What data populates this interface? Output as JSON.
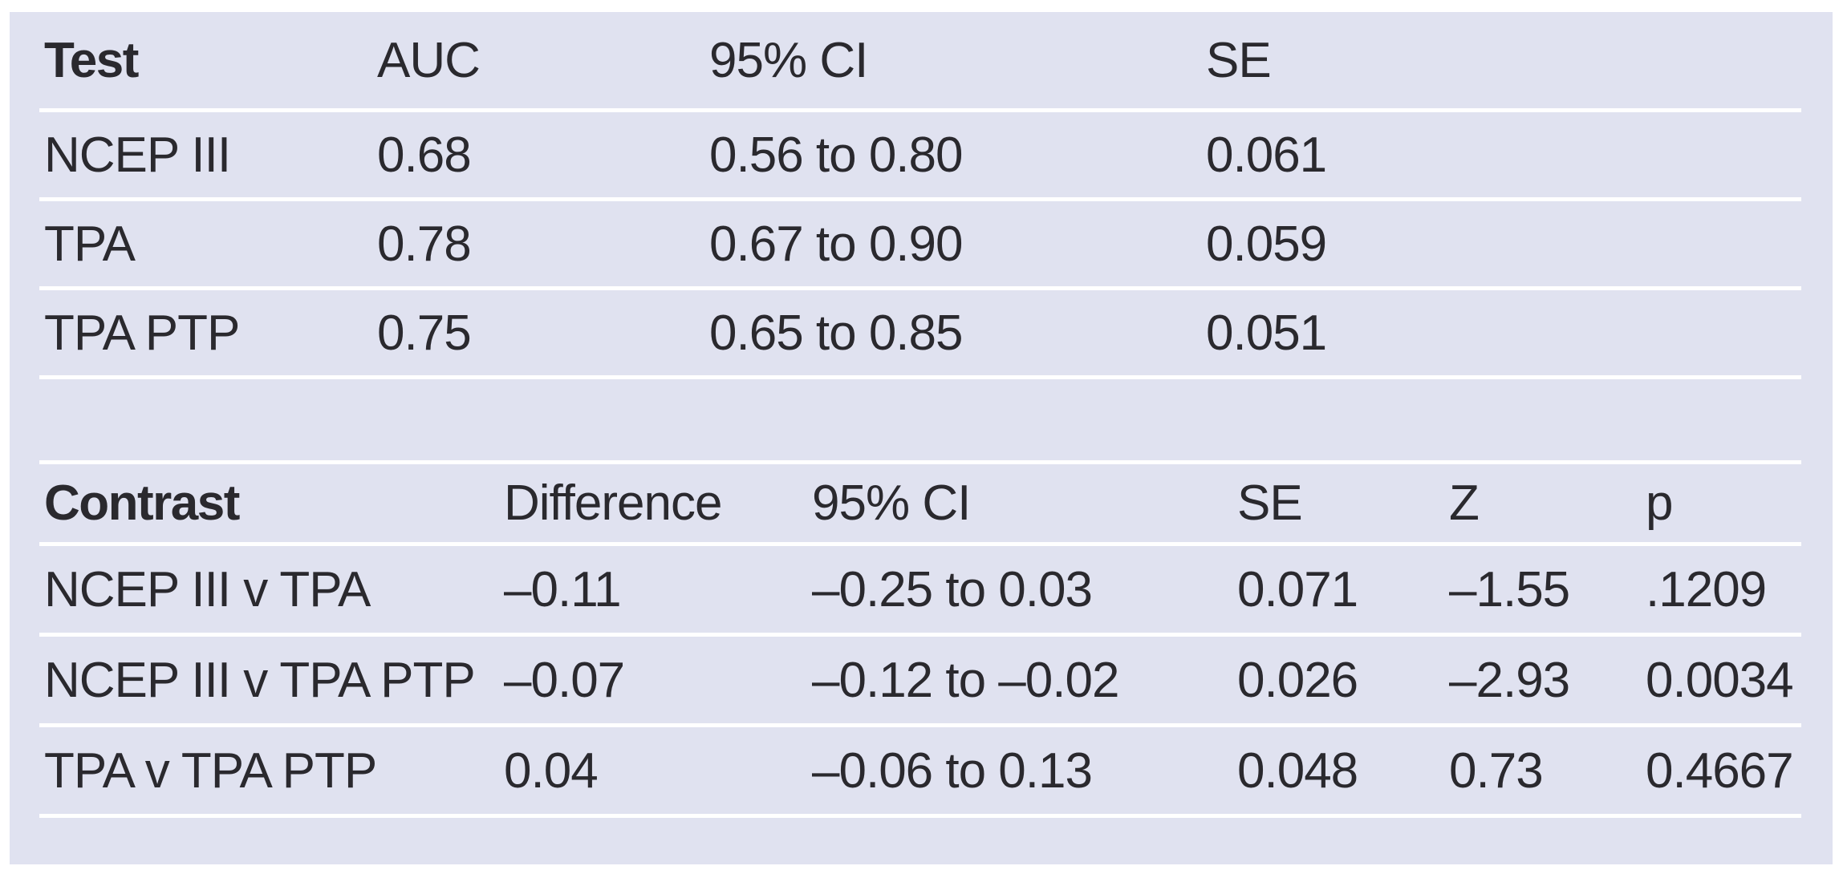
{
  "panel": {
    "background_color": "#e0e2f0",
    "rule_color": "#ffffff",
    "text_color": "#2a292e"
  },
  "auc_table": {
    "columns": [
      "Test",
      "AUC",
      "95% CI",
      "SE"
    ],
    "rows": [
      [
        "NCEP III",
        "0.68",
        "0.56 to 0.80",
        "0.061"
      ],
      [
        "TPA",
        "0.78",
        "0.67 to 0.90",
        "0.059"
      ],
      [
        "TPA PTP",
        "0.75",
        "0.65 to 0.85",
        "0.051"
      ]
    ]
  },
  "contrast_table": {
    "columns": [
      "Contrast",
      "Difference",
      "95% CI",
      "SE",
      "Z",
      "p"
    ],
    "rows": [
      [
        "NCEP III v TPA",
        "–0.11",
        "–0.25 to 0.03",
        "0.071",
        "–1.55",
        ".1209"
      ],
      [
        "NCEP III v TPA PTP",
        "–0.07",
        "–0.12 to –0.02",
        "0.026",
        "–2.93",
        "0.0034"
      ],
      [
        "TPA v TPA PTP",
        "0.04",
        "–0.06 to 0.13",
        "0.048",
        "0.73",
        "0.4667"
      ]
    ]
  }
}
